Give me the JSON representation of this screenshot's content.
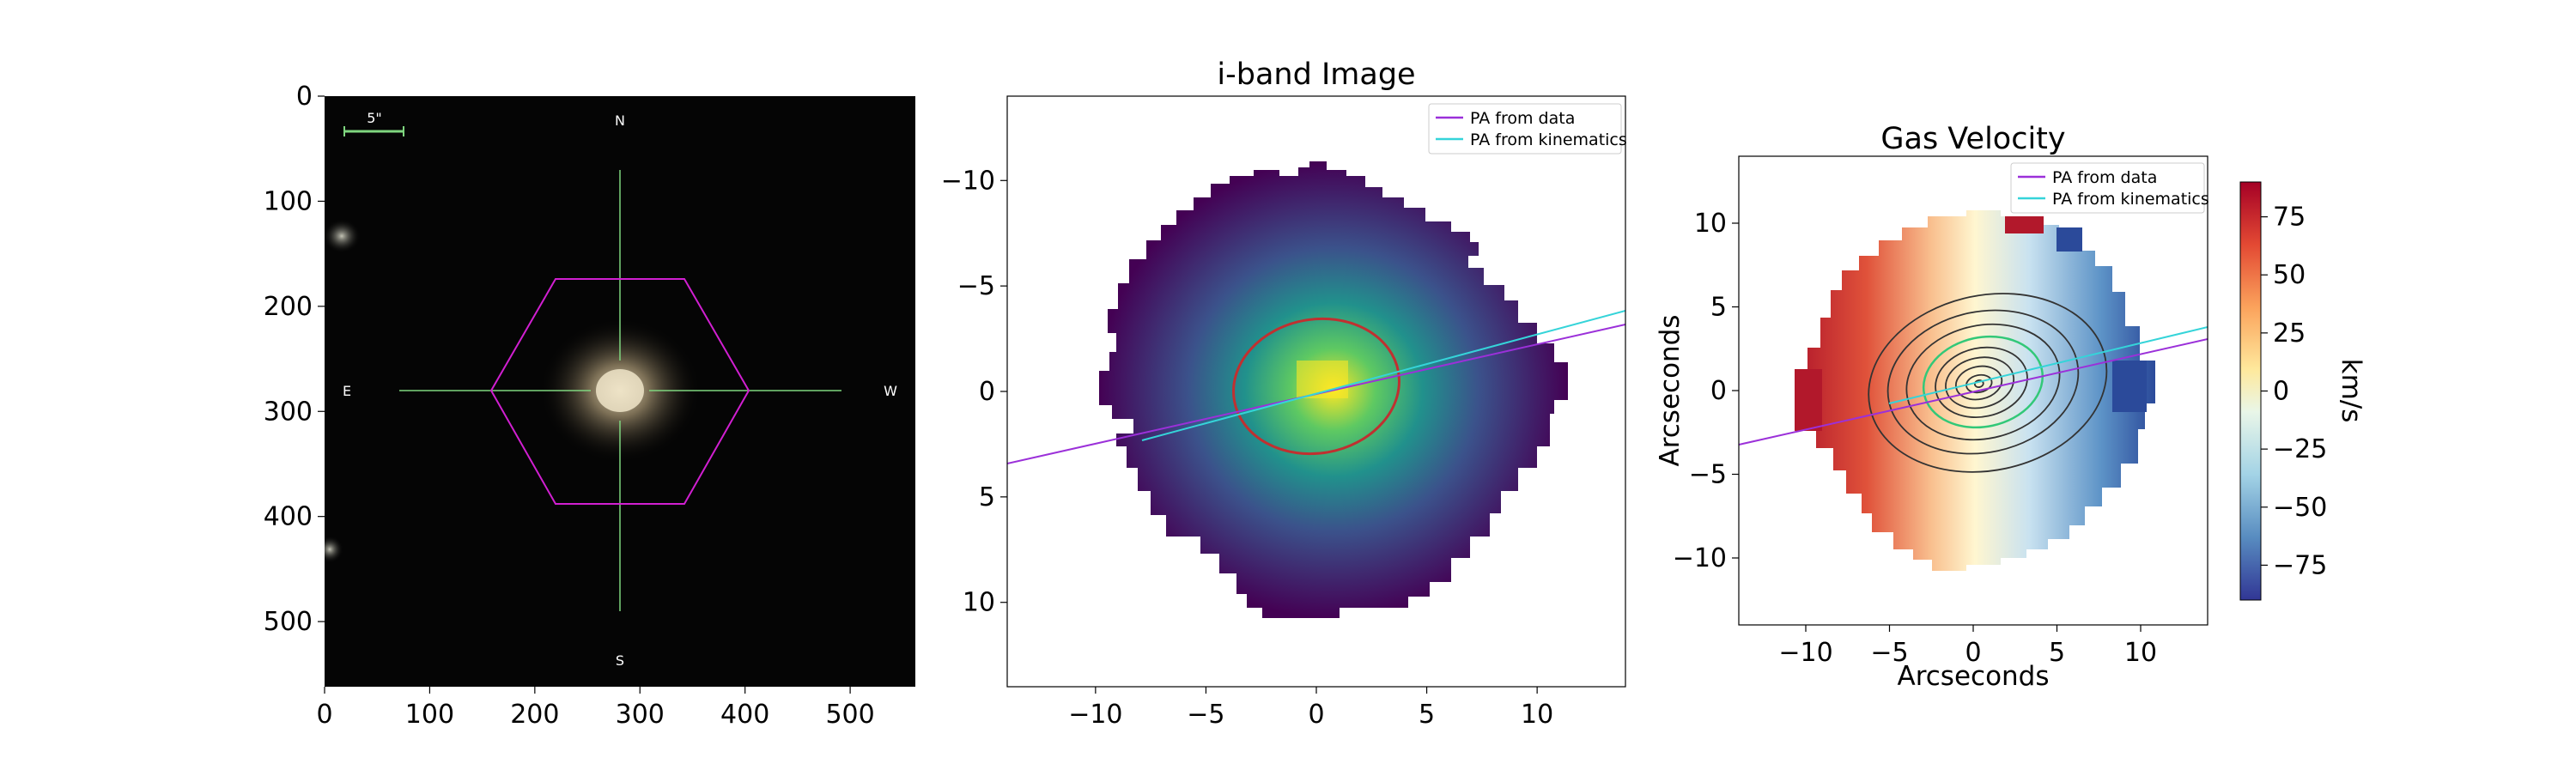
{
  "chart_data": [
    {
      "type": "image",
      "panel": "sdss-cutout",
      "title": "",
      "xlabel": "",
      "ylabel": "",
      "xlim": [
        0,
        562
      ],
      "ylim": [
        562,
        0
      ],
      "xticks": [
        "0",
        "100",
        "200",
        "300",
        "400",
        "500"
      ],
      "xtick_values": [
        0,
        100,
        200,
        300,
        400,
        500
      ],
      "yticks": [
        "0",
        "100",
        "200",
        "300",
        "400",
        "500"
      ],
      "ytick_values": [
        0,
        100,
        200,
        300,
        400,
        500
      ],
      "scale_bar_label": "5\"",
      "compass": {
        "north": "N",
        "south": "S",
        "east": "E",
        "west": "W"
      },
      "hexagon_color": "#d11fd1",
      "crosshair_color": "#7fd67f"
    },
    {
      "type": "image",
      "panel": "i-band",
      "title": "i-band Image",
      "xlabel": "",
      "ylabel": "",
      "xlim": [
        -14,
        14
      ],
      "ylim": [
        -14,
        14
      ],
      "xticks": [
        "−10",
        "−5",
        "0",
        "5",
        "10"
      ],
      "xtick_values": [
        -10,
        -5,
        0,
        5,
        10
      ],
      "yticks": [
        "−10",
        "−5",
        "0",
        "5",
        "10"
      ],
      "ytick_values": [
        -10,
        -5,
        0,
        5,
        10
      ],
      "legend": [
        {
          "label": "PA from data",
          "color": "#9b30d9"
        },
        {
          "label": "PA from kinematics",
          "color": "#35d4d9"
        }
      ],
      "ellipse": {
        "center": [
          0,
          0
        ],
        "semi_major": 3.6,
        "semi_minor": 2.9,
        "angle_deg": -10,
        "color": "#c03030"
      },
      "pa_data": {
        "slope": -0.2
      },
      "pa_kinematics": {
        "slope": -0.22
      }
    },
    {
      "type": "heatmap",
      "panel": "gas-velocity",
      "title": "Gas Velocity",
      "xlabel": "Arcseconds",
      "ylabel": "Arcseconds",
      "xlim": [
        -14,
        14
      ],
      "ylim": [
        -14,
        14
      ],
      "xticks": [
        "−10",
        "−5",
        "0",
        "5",
        "10"
      ],
      "xtick_values": [
        -10,
        -5,
        0,
        5,
        10
      ],
      "yticks": [
        "10",
        "5",
        "0",
        "−5",
        "−10"
      ],
      "ytick_values": [
        10,
        5,
        0,
        -5,
        -10
      ],
      "legend": [
        {
          "label": "PA from data",
          "color": "#9b30d9"
        },
        {
          "label": "PA from kinematics",
          "color": "#35d4d9"
        }
      ],
      "colorbar": {
        "label": "km/s",
        "vmin": -90,
        "vmax": 90,
        "ticks": [
          "75",
          "50",
          "25",
          "0",
          "−25",
          "−50",
          "−75"
        ],
        "tick_values": [
          75,
          50,
          25,
          0,
          -25,
          -50,
          -75
        ]
      }
    }
  ]
}
